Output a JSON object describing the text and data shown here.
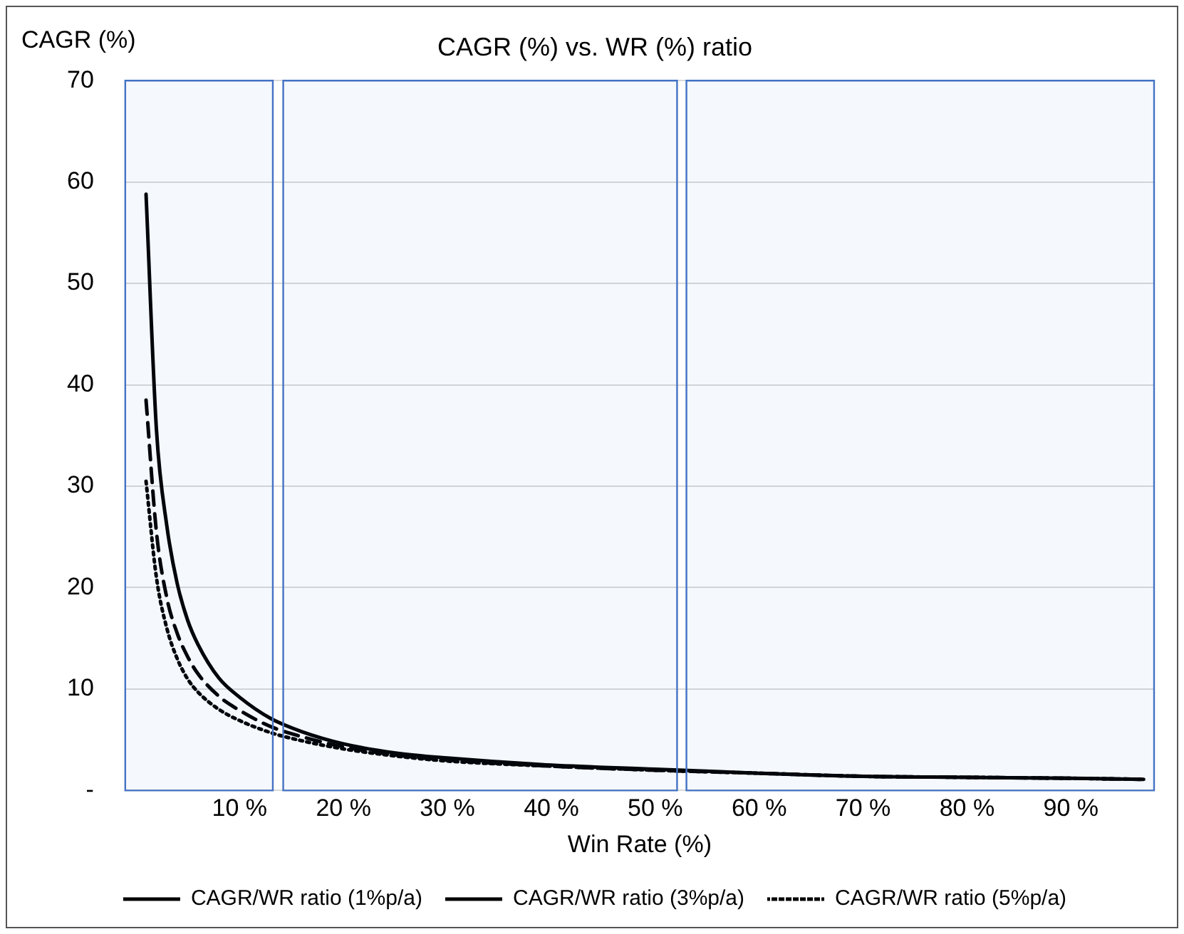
{
  "chart_data": {
    "type": "line",
    "title": "CAGR (%) vs. WR (%) ratio",
    "xlabel": "Win Rate (%)",
    "ylabel": "CAGR (%)",
    "x": [
      1,
      2,
      3,
      4,
      5,
      6,
      8,
      10,
      13,
      16,
      20,
      25,
      30,
      40,
      50,
      60,
      70,
      80,
      90,
      97
    ],
    "series": [
      {
        "name": "CAGR/WR ratio (1%p/a)",
        "color": "#000000",
        "line_style": "solid",
        "values": [
          58.8,
          35.6,
          26.1,
          20.4,
          16.8,
          14.4,
          11.1,
          9.2,
          7.1,
          5.8,
          4.6,
          3.7,
          3.2,
          2.5,
          2.1,
          1.7,
          1.4,
          1.3,
          1.2,
          1.1
        ]
      },
      {
        "name": "CAGR/WR ratio (3%p/a)",
        "color": "#000000",
        "line_style": "dashed",
        "values": [
          38.5,
          25.5,
          19,
          15.5,
          13.2,
          11.5,
          9.3,
          7.9,
          6.3,
          5.3,
          4.3,
          3.5,
          3.0,
          2.4,
          2.0,
          1.7,
          1.4,
          1.3,
          1.2,
          1.1
        ]
      },
      {
        "name": "CAGR/WR ratio (5%p/a)",
        "color": "#000000",
        "line_style": "dotted",
        "values": [
          30.5,
          21,
          16,
          13,
          11,
          9.7,
          8,
          6.9,
          5.7,
          4.9,
          4.1,
          3.4,
          2.9,
          2.4,
          2.0,
          1.7,
          1.4,
          1.3,
          1.2,
          1.1
        ]
      }
    ],
    "xlim": [
      -1,
      98
    ],
    "xticks": [
      {
        "value": 10,
        "label": "10 %"
      },
      {
        "value": 20,
        "label": "20 %"
      },
      {
        "value": 30,
        "label": "30 %"
      },
      {
        "value": 40,
        "label": "40 %"
      },
      {
        "value": 50,
        "label": "50 %"
      },
      {
        "value": 60,
        "label": "60 %"
      },
      {
        "value": 70,
        "label": "70 %"
      },
      {
        "value": 80,
        "label": "80 %"
      },
      {
        "value": 90,
        "label": "90 %"
      }
    ],
    "ylim": [
      0,
      70
    ],
    "yticks": [
      {
        "value": 0,
        "label": "-"
      },
      10,
      20,
      30,
      40,
      50,
      60,
      70
    ],
    "bands": [
      {
        "axis": "x",
        "from": -1,
        "to": 13.2,
        "color": "#4472c4"
      },
      {
        "axis": "x",
        "from": 14.2,
        "to": 52.1,
        "color": "#4472c4"
      },
      {
        "axis": "x",
        "from": 53,
        "to": 98,
        "color": "#4472c4"
      }
    ],
    "grid": "y",
    "legend": "bottom",
    "marker": "none"
  }
}
